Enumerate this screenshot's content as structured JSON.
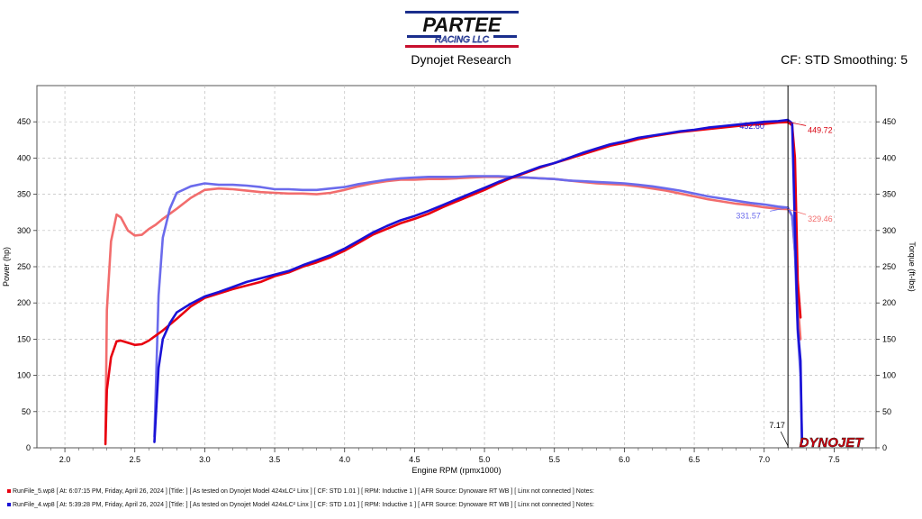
{
  "header": {
    "logo_text": "PARTEE",
    "logo_sub": "RACING LLC",
    "subtitle": "Dynojet Research",
    "cf_info": "CF: STD Smoothing: 5"
  },
  "chart_data": {
    "type": "line",
    "xlabel": "Engine RPM (rpmx1000)",
    "ylabel_left": "Power (hp)",
    "ylabel_right": "Torque (ft-lbs)",
    "xlim": [
      1.8,
      7.8
    ],
    "ylim": [
      0,
      500
    ],
    "x_ticks": [
      "2.0",
      "2.5",
      "3.0",
      "3.5",
      "4.0",
      "4.5",
      "5.0",
      "5.5",
      "6.0",
      "6.5",
      "7.0",
      "7.5"
    ],
    "y_ticks": [
      "0",
      "50",
      "100",
      "150",
      "200",
      "250",
      "300",
      "350",
      "400",
      "450"
    ],
    "grid": "dashed",
    "brand": "DYNOJET",
    "cursor": {
      "x": 7.17,
      "label": "7.17"
    },
    "series": [
      {
        "name": "Power",
        "run": "RunFile_5.wp8",
        "color": "#e8000f",
        "x": [
          2.29,
          2.3,
          2.33,
          2.37,
          2.4,
          2.45,
          2.5,
          2.55,
          2.6,
          2.65,
          2.7,
          2.8,
          2.9,
          3.0,
          3.1,
          3.2,
          3.3,
          3.4,
          3.5,
          3.6,
          3.7,
          3.8,
          3.9,
          4.0,
          4.1,
          4.2,
          4.3,
          4.4,
          4.5,
          4.6,
          4.7,
          4.8,
          4.9,
          5.0,
          5.1,
          5.2,
          5.3,
          5.4,
          5.5,
          5.6,
          5.7,
          5.8,
          5.9,
          6.0,
          6.1,
          6.2,
          6.3,
          6.4,
          6.5,
          6.6,
          6.7,
          6.8,
          6.9,
          7.0,
          7.1,
          7.17,
          7.2,
          7.22,
          7.24,
          7.26
        ],
        "values": [
          5,
          80,
          125,
          147,
          148,
          145,
          142,
          143,
          148,
          155,
          162,
          178,
          195,
          207,
          213,
          219,
          224,
          229,
          237,
          242,
          250,
          256,
          263,
          272,
          283,
          294,
          302,
          310,
          316,
          323,
          332,
          340,
          348,
          356,
          365,
          373,
          380,
          387,
          393,
          399,
          405,
          411,
          417,
          421,
          426,
          430,
          433,
          436,
          438,
          440,
          442,
          444,
          446,
          447,
          449,
          449.72,
          445,
          400,
          230,
          180
        ]
      },
      {
        "name": "Torque",
        "run": "RunFile_5.wp8",
        "color": "#f26d6d",
        "x": [
          2.29,
          2.3,
          2.33,
          2.37,
          2.4,
          2.45,
          2.5,
          2.55,
          2.6,
          2.65,
          2.7,
          2.8,
          2.9,
          3.0,
          3.1,
          3.2,
          3.3,
          3.4,
          3.5,
          3.6,
          3.7,
          3.8,
          3.9,
          4.0,
          4.1,
          4.2,
          4.3,
          4.4,
          4.5,
          4.6,
          4.7,
          4.8,
          4.9,
          5.0,
          5.1,
          5.2,
          5.3,
          5.4,
          5.5,
          5.6,
          5.7,
          5.8,
          5.9,
          6.0,
          6.1,
          6.2,
          6.3,
          6.4,
          6.5,
          6.6,
          6.7,
          6.8,
          6.9,
          7.0,
          7.1,
          7.17,
          7.2,
          7.22,
          7.24,
          7.26
        ],
        "values": [
          10,
          190,
          285,
          322,
          318,
          300,
          293,
          294,
          302,
          308,
          316,
          330,
          345,
          356,
          358,
          357,
          355,
          353,
          352,
          351,
          351,
          350,
          352,
          356,
          361,
          365,
          368,
          370,
          370,
          371,
          371,
          372,
          373,
          374,
          374,
          373,
          373,
          372,
          371,
          369,
          367,
          365,
          364,
          363,
          361,
          358,
          355,
          351,
          347,
          343,
          340,
          337,
          335,
          332,
          330,
          329.46,
          320,
          270,
          200,
          150
        ]
      },
      {
        "name": "Power",
        "run": "RunFile_4.wp8",
        "color": "#1a12d6",
        "x": [
          2.64,
          2.67,
          2.7,
          2.75,
          2.8,
          2.9,
          3.0,
          3.1,
          3.2,
          3.3,
          3.4,
          3.5,
          3.6,
          3.7,
          3.8,
          3.9,
          4.0,
          4.1,
          4.2,
          4.3,
          4.4,
          4.5,
          4.6,
          4.7,
          4.8,
          4.9,
          5.0,
          5.1,
          5.2,
          5.3,
          5.4,
          5.5,
          5.6,
          5.7,
          5.8,
          5.9,
          6.0,
          6.1,
          6.2,
          6.3,
          6.4,
          6.5,
          6.6,
          6.7,
          6.8,
          6.9,
          7.0,
          7.1,
          7.17,
          7.2,
          7.22,
          7.24,
          7.26,
          7.27
        ],
        "values": [
          8,
          110,
          150,
          172,
          187,
          199,
          209,
          215,
          222,
          229,
          234,
          239,
          244,
          252,
          259,
          266,
          275,
          286,
          297,
          306,
          314,
          320,
          327,
          335,
          343,
          351,
          359,
          367,
          374,
          381,
          388,
          393,
          400,
          407,
          413,
          419,
          423,
          428,
          431,
          434,
          437,
          439,
          442,
          444,
          446,
          448,
          450,
          451,
          452.6,
          448,
          300,
          165,
          120,
          8
        ]
      },
      {
        "name": "Torque",
        "run": "RunFile_4.wp8",
        "color": "#6b6bec",
        "x": [
          2.64,
          2.67,
          2.7,
          2.75,
          2.8,
          2.9,
          3.0,
          3.1,
          3.2,
          3.3,
          3.4,
          3.5,
          3.6,
          3.7,
          3.8,
          3.9,
          4.0,
          4.1,
          4.2,
          4.3,
          4.4,
          4.5,
          4.6,
          4.7,
          4.8,
          4.9,
          5.0,
          5.1,
          5.2,
          5.3,
          5.4,
          5.5,
          5.6,
          5.7,
          5.8,
          5.9,
          6.0,
          6.1,
          6.2,
          6.3,
          6.4,
          6.5,
          6.6,
          6.7,
          6.8,
          6.9,
          7.0,
          7.1,
          7.17,
          7.2,
          7.22,
          7.24,
          7.26,
          7.27
        ],
        "values": [
          15,
          210,
          290,
          330,
          352,
          361,
          365,
          363,
          363,
          362,
          360,
          357,
          357,
          356,
          356,
          358,
          360,
          364,
          367,
          370,
          372,
          373,
          374,
          374,
          374,
          375,
          375,
          375,
          374,
          373,
          372,
          371,
          369,
          368,
          367,
          366,
          365,
          363,
          361,
          358,
          355,
          351,
          347,
          344,
          341,
          338,
          336,
          333,
          331.57,
          320,
          270,
          160,
          100,
          10
        ]
      }
    ],
    "annotations": [
      {
        "text": "452.60",
        "x": 7.17,
        "y": 452.6,
        "color": "#1a12d6"
      },
      {
        "text": "449.72",
        "x": 7.17,
        "y": 449.72,
        "color": "#d8000e"
      },
      {
        "text": "331.57",
        "x": 7.17,
        "y": 331.57,
        "color": "#6b6bec"
      },
      {
        "text": "329.46",
        "x": 7.17,
        "y": 329.46,
        "color": "#f26d6d"
      }
    ]
  },
  "footer": {
    "runs": [
      {
        "color": "#e8000f",
        "text": "RunFile_5.wp8  [ At: 6:07:15 PM, Friday, April 26, 2024 ] [Title: ]  [ As tested on Dynojet Model 424xLC² Linx ] [ CF: STD 1.01 ] [ RPM: Inductive 1 ] [ AFR Source: Dynoware RT WB ] [ Linx not connected ] Notes:"
      },
      {
        "color": "#1a12d6",
        "text": "RunFile_4.wp8  [ At: 5:39:28 PM, Friday, April 26, 2024 ] [Title: ]  [ As tested on Dynojet Model 424xLC² Linx ] [ CF: STD 1.01 ] [ RPM: Inductive 1 ] [ AFR Source: Dynoware RT WB ] [ Linx not connected ] Notes:"
      }
    ]
  }
}
